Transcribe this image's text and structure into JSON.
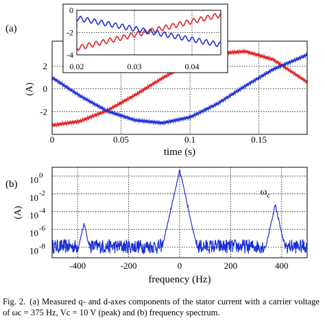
{
  "chart_data": [
    {
      "type": "line",
      "panel_label": "(a)",
      "xlabel": "time (s)",
      "ylabel": "(A)",
      "xlim": [
        0,
        0.185
      ],
      "ylim": [
        -4,
        4.2
      ],
      "x_ticks": [
        0,
        0.05,
        0.1,
        0.15
      ],
      "x_tick_labels": [
        "0",
        "0.05",
        "0.1",
        "0.15"
      ],
      "y_ticks": [
        2,
        0,
        -2
      ],
      "y_tick_labels": [
        "2",
        "0",
        "-2"
      ],
      "grid": true,
      "series": [
        {
          "color": "#e02020",
          "x": [
            0,
            0.02,
            0.04,
            0.06,
            0.08,
            0.1,
            0.12,
            0.14,
            0.16,
            0.185
          ],
          "y": [
            -3.2,
            -2.85,
            -1.9,
            -0.55,
            0.95,
            2.3,
            3.1,
            3.3,
            2.6,
            0.6
          ],
          "ripple_amplitude": 0.12
        },
        {
          "color": "#1a2fd6",
          "x": [
            0,
            0.02,
            0.04,
            0.06,
            0.08,
            0.1,
            0.12,
            0.14,
            0.16,
            0.185
          ],
          "y": [
            1.0,
            -0.6,
            -1.95,
            -2.75,
            -3.0,
            -2.5,
            -1.3,
            0.25,
            1.7,
            3.0
          ],
          "ripple_amplitude": 0.12
        }
      ],
      "inset": {
        "xlim": [
          0.02,
          0.045
        ],
        "ylim": [
          -4,
          0
        ],
        "x_ticks": [
          0.02,
          0.03,
          0.04
        ],
        "x_tick_labels": [
          "0.02",
          "0.03",
          "0.04"
        ],
        "y_ticks": [
          0,
          -2,
          -4
        ],
        "y_tick_labels": [
          "0",
          "-2",
          "-4"
        ],
        "series": [
          {
            "color": "#e02020",
            "x": [
              0.02,
              0.045
            ],
            "y": [
              -3.4,
              -0.4
            ],
            "ripple_amplitude": 0.22
          },
          {
            "color": "#1a2fd6",
            "x": [
              0.02,
              0.045
            ],
            "y": [
              -0.7,
              -3.1
            ],
            "ripple_amplitude": 0.22
          }
        ]
      }
    },
    {
      "type": "line",
      "panel_label": "(b)",
      "xlabel": "frequency (Hz)",
      "ylabel": "(A)",
      "xlim": [
        -500,
        500
      ],
      "y_scale": "log",
      "ylim_exponent": [
        -9.2,
        1
      ],
      "x_ticks": [
        -400,
        -200,
        0,
        200,
        400
      ],
      "x_tick_labels": [
        "-400",
        "-200",
        "0",
        "200",
        "400"
      ],
      "y_tick_exponents": [
        0,
        -2,
        -4,
        -6,
        -8
      ],
      "y_tick_base": "10",
      "y_tick_exponent_labels": [
        "0",
        "-2",
        "-4",
        "-6",
        "-8"
      ],
      "grid": true,
      "noise_floor_exponent": -8,
      "peaks": [
        {
          "x": 0,
          "y_exponent": 0.7
        },
        {
          "x": 375,
          "y_exponent": -3.2
        },
        {
          "x": -375,
          "y_exponent": -5.3
        }
      ],
      "annotation": {
        "text": "ω",
        "subscript": "c",
        "x": 375
      },
      "series": [
        {
          "color": "#1a2fd6"
        }
      ]
    }
  ],
  "caption": {
    "label": "Fig. 2.",
    "text": "(a) Measured q- and d-axes components of the stator current with a carrier voltage of ωc = 375 Hz, Vc = 10 V (peak) and (b) frequency spectrum."
  }
}
